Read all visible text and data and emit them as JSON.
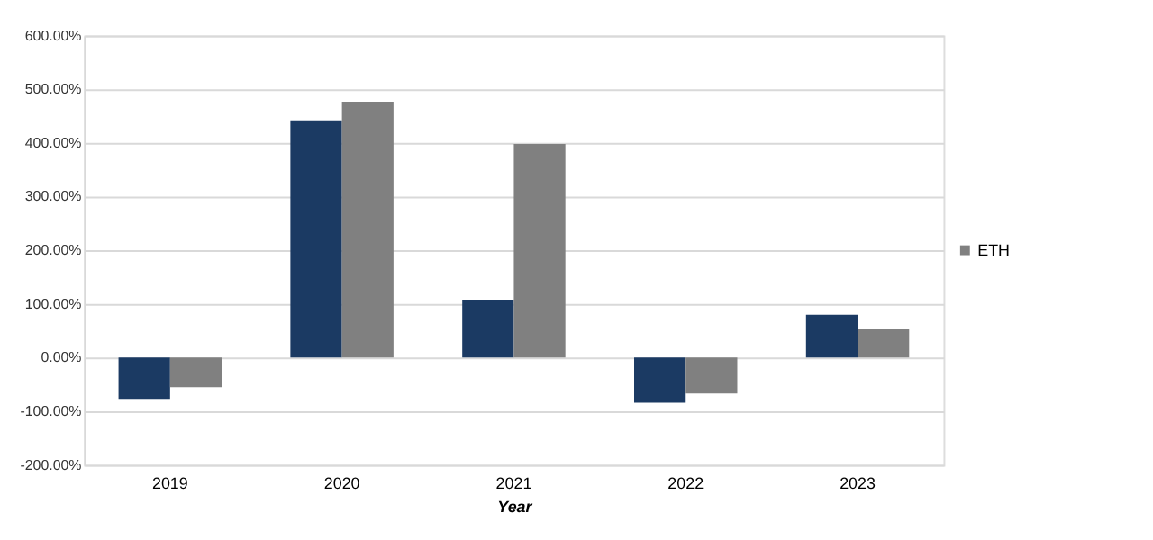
{
  "chart_data": {
    "type": "bar",
    "xlabel": "Year",
    "categories": [
      "2019",
      "2020",
      "2021",
      "2022",
      "2023"
    ],
    "series": [
      {
        "color": "#1b3a63",
        "values": [
          -77,
          442,
          108,
          -84,
          80
        ]
      },
      {
        "name": "ETH",
        "color": "#808080",
        "values": [
          -55,
          477,
          398,
          -67,
          53
        ]
      }
    ],
    "ylim": [
      -200,
      600
    ],
    "yticks": [
      {
        "value": -200,
        "label": "-200.00%"
      },
      {
        "value": -100,
        "label": "-100.00%"
      },
      {
        "value": 0,
        "label": "0.00%"
      },
      {
        "value": 100,
        "label": "100.00%"
      },
      {
        "value": 200,
        "label": "200.00%"
      },
      {
        "value": 300,
        "label": "300.00%"
      },
      {
        "value": 400,
        "label": "400.00%"
      },
      {
        "value": 500,
        "label": "500.00%"
      },
      {
        "value": 600,
        "label": "600.00%"
      }
    ],
    "grid": "y",
    "legend": "right"
  }
}
